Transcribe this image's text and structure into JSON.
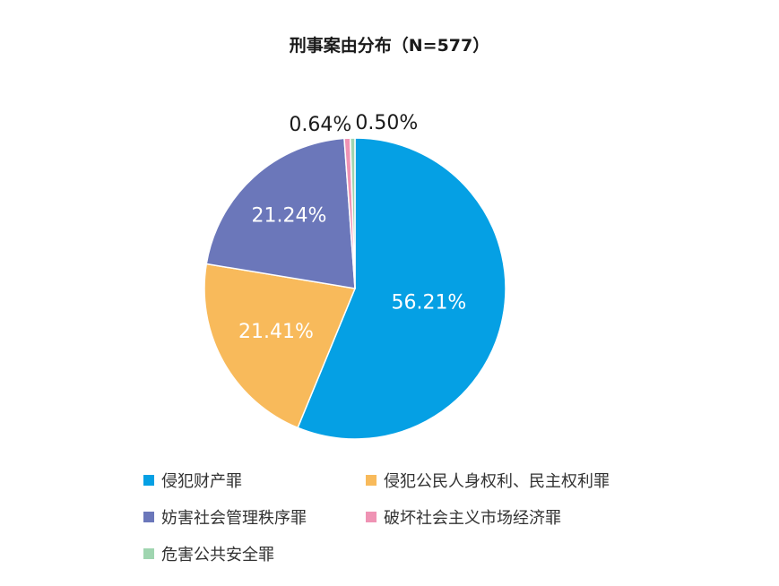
{
  "chart_data": {
    "type": "pie",
    "title": "刑事案由分布（N=577）",
    "slices": [
      {
        "name": "侵犯财产罪",
        "value": 56.21,
        "label": "56.21%",
        "color": "#05A0E4"
      },
      {
        "name": "侵犯公民人身权利、民主权利罪",
        "value": 21.41,
        "label": "21.41%",
        "color": "#F8BA5B"
      },
      {
        "name": "妨害社会管理秩序罪",
        "value": 21.24,
        "label": "21.24%",
        "color": "#6B77BA"
      },
      {
        "name": "破坏社会主义市场经济罪",
        "value": 0.64,
        "label": "0.64%",
        "color": "#EF93B4"
      },
      {
        "name": "危害公共安全罪",
        "value": 0.5,
        "label": "0.50%",
        "color": "#9FD5B0"
      }
    ],
    "legend_position": "bottom"
  }
}
